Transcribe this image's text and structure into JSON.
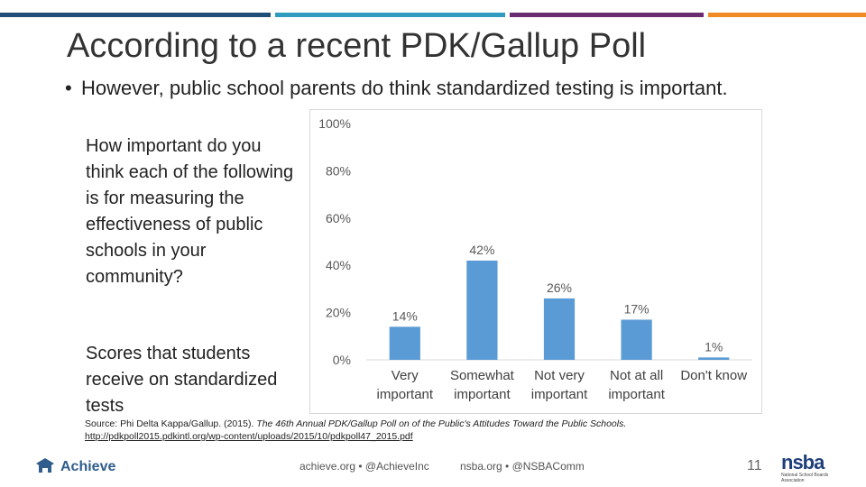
{
  "slide": {
    "title": "According to a recent PDK/Gallup Poll",
    "bullet_symbol": "•",
    "bullet": "However, public school parents do think standardized testing is important.",
    "question": "How important do you think each of the following is for measuring the effectiveness of public schools in your community?",
    "item": "Scores that students receive on standardized tests",
    "page_number": "11"
  },
  "colors": {
    "bar": "#5b9bd5",
    "topbar": [
      "#1f4e79",
      "#2e9bbf",
      "#6a2c70",
      "#f08a24"
    ]
  },
  "chart_data": {
    "type": "bar",
    "categories": [
      [
        "Very",
        "important"
      ],
      [
        "Somewhat",
        "important"
      ],
      [
        "Not very",
        "important"
      ],
      [
        "Not at all",
        "important"
      ],
      [
        "Don't know"
      ]
    ],
    "values": [
      14,
      42,
      26,
      17,
      1
    ],
    "data_labels": [
      "14%",
      "42%",
      "26%",
      "17%",
      "1%"
    ],
    "yticks": [
      "0%",
      "20%",
      "40%",
      "60%",
      "80%",
      "100%"
    ],
    "ylim": [
      0,
      100
    ],
    "grid": false
  },
  "source": {
    "prefix": "Source: Phi Delta Kappa/Gallup. (2015).",
    "title": "The 46th Annual PDK/Gallup Poll on of the Public's Attitudes Toward the Public Schools.",
    "url": "http://pdkpoll2015.pdkintl.org/wp-content/uploads/2015/10/pdkpoll47_2015.pdf"
  },
  "footer": {
    "achieve_name": "Achieve",
    "achieve_links": "achieve.org • @AchieveInc",
    "nsba_links": "nsba.org • @NSBAComm",
    "nsba_logo_text": "nsba",
    "nsba_tagline": "National School Boards Association"
  }
}
